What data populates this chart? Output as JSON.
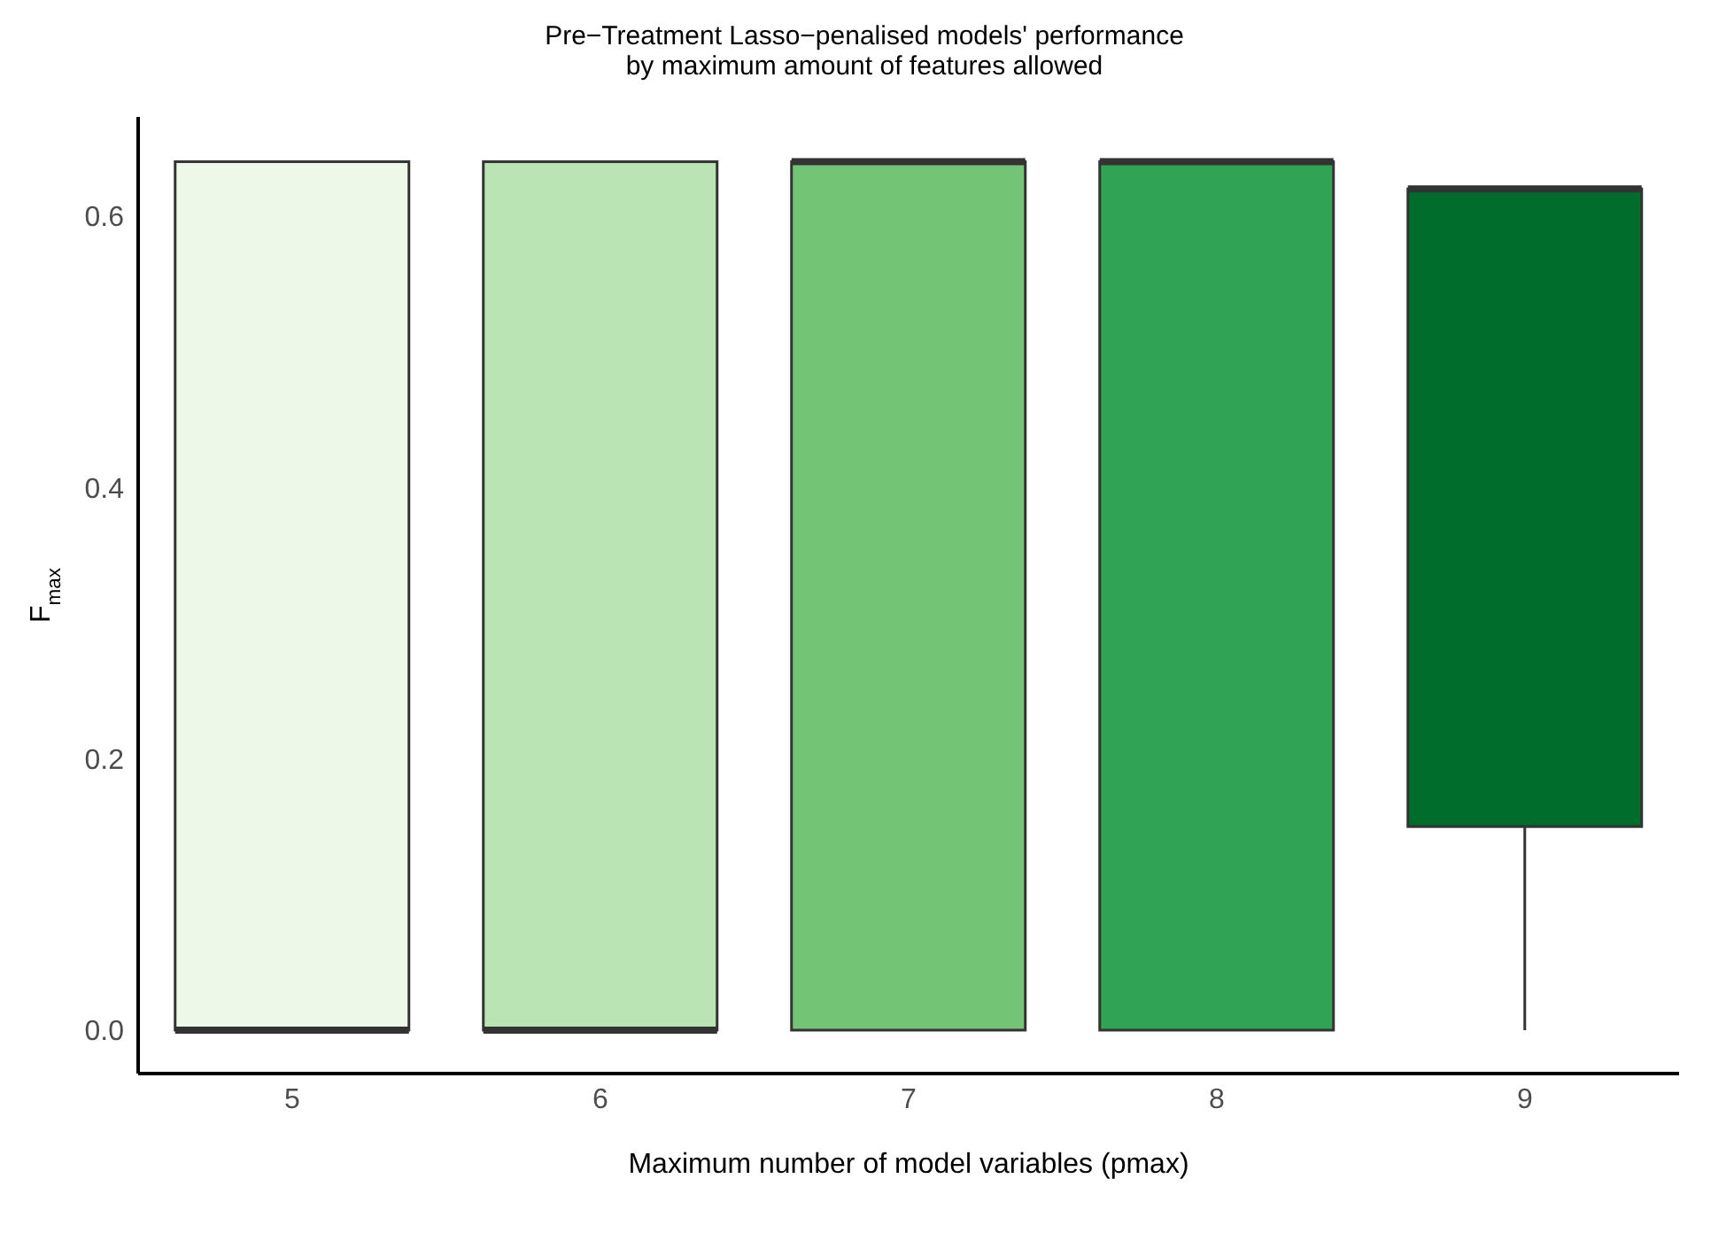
{
  "chart_data": {
    "type": "box",
    "title": "Pre−Treatment Lasso−penalised models' performance\nby maximum amount of features allowed",
    "xlabel": "Maximum number of model variables (pmax)",
    "ylabel": "F$_{max}$",
    "categories": [
      "5",
      "6",
      "7",
      "8",
      "9"
    ],
    "colors": [
      "#edf8e9",
      "#bae4b3",
      "#74c476",
      "#31a354",
      "#006d2c"
    ],
    "boxes": [
      {
        "low": 0,
        "q1": 0,
        "median": 0,
        "q3": 0.64,
        "high": 0.64
      },
      {
        "low": 0,
        "q1": 0,
        "median": 0,
        "q3": 0.64,
        "high": 0.64
      },
      {
        "low": 0,
        "q1": 0,
        "median": 0.64,
        "q3": 0.64,
        "high": 0.64
      },
      {
        "low": 0,
        "q1": 0,
        "median": 0.64,
        "q3": 0.64,
        "high": 0.64
      },
      {
        "low": 0,
        "q1": 0.15,
        "median": 0.62,
        "q3": 0.62,
        "high": 0.62
      }
    ],
    "ylim": [
      -0.032,
      0.673
    ],
    "yticks": [
      {
        "value": 0,
        "label": "0.0"
      },
      {
        "value": 0.2,
        "label": "0.2"
      },
      {
        "value": 0.4,
        "label": "0.4"
      },
      {
        "value": 0.6,
        "label": "0.6"
      }
    ],
    "grid": false,
    "legend": false
  }
}
